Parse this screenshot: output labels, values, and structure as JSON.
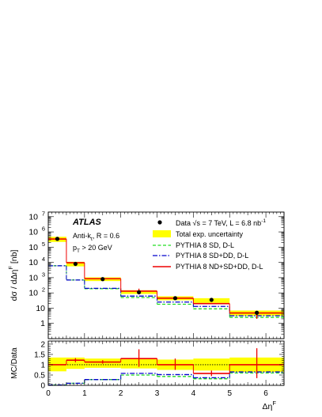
{
  "chart_data": [
    {
      "type": "step-histogram",
      "panel": "main",
      "atlas_label": "ATLAS",
      "annotations": [
        "Anti-k",
        "t",
        ", R = 0.6",
        "p",
        "T",
        " > 20 GeV"
      ],
      "ylabel": "dσ / dΔη",
      "ylabel_sup": "F",
      "ylabel_unit": " [nb]",
      "yscale": "log",
      "ylim": [
        0.1,
        20000000
      ],
      "y_ticks": [
        {
          "value": 1,
          "label": "1"
        },
        {
          "value": 10,
          "label": "10"
        },
        {
          "value": 100,
          "label": "10",
          "exp": "2"
        },
        {
          "value": 1000,
          "label": "10",
          "exp": "3"
        },
        {
          "value": 10000,
          "label": "10",
          "exp": "4"
        },
        {
          "value": 100000,
          "label": "10",
          "exp": "5"
        },
        {
          "value": 1000000,
          "label": "10",
          "exp": "6"
        },
        {
          "value": 10000000,
          "label": "10",
          "exp": "7"
        }
      ],
      "bin_edges": [
        0,
        0.5,
        1,
        2,
        3,
        4,
        5,
        6.5
      ],
      "data": {
        "name": "Data √s = 7 TeV, L = 6.8 nb",
        "name_sup": "-1",
        "x": [
          0.25,
          0.75,
          1.5,
          2.5,
          3.5,
          4.5,
          5.75
        ],
        "values": [
          350000,
          8000,
          800,
          110,
          45,
          35,
          5
        ]
      },
      "uncertainty_band": {
        "name": "Total exp. uncertainty",
        "lower": [
          220000,
          5500,
          600,
          85,
          33,
          22,
          3.2
        ],
        "upper": [
          480000,
          11000,
          1050,
          150,
          60,
          45,
          7
        ]
      },
      "series": [
        {
          "name": "PYTHIA 8 SD, D-L",
          "style": "dashed",
          "color": "#22dd22",
          "values": [
            6000,
            700,
            190,
            50,
            18,
            9,
            2.5
          ]
        },
        {
          "name": "PYTHIA 8 SD+DD, D-L",
          "style": "dashdot",
          "color": "#0000cc",
          "values": [
            6000,
            700,
            200,
            62,
            25,
            13,
            3.2
          ]
        },
        {
          "name": "PYTHIA 8 ND+SD+DD, D-L",
          "style": "solid",
          "color": "#ee0000",
          "values": [
            340000,
            9500,
            850,
            130,
            45,
            20,
            4.8
          ]
        }
      ],
      "mc_statistical_errors": [
        {
          "x": 2.5,
          "lower": 95,
          "upper": 190
        },
        {
          "x": 3.5,
          "lower": 35,
          "upper": 55
        },
        {
          "x": 5.75,
          "lower": 2,
          "upper": 6
        }
      ]
    },
    {
      "type": "step-histogram",
      "panel": "ratio",
      "ylabel": "MC/Data",
      "ylim": [
        0,
        2.15
      ],
      "y_ticks": [
        0,
        0.5,
        1,
        1.5,
        2
      ],
      "xlabel": "Δη",
      "xlabel_sup": "F",
      "xlim": [
        0,
        6.5
      ],
      "x_ticks": [
        0,
        1,
        2,
        3,
        4,
        5,
        6
      ],
      "bin_edges": [
        0,
        0.5,
        1,
        2,
        3,
        4,
        5,
        6.5
      ],
      "band": {
        "lower": [
          0.68,
          0.8,
          0.85,
          0.82,
          0.75,
          0.72,
          0.65
        ],
        "upper": [
          1.35,
          1.35,
          1.3,
          1.3,
          1.25,
          1.3,
          1.35
        ]
      },
      "reference_line": 1,
      "series": [
        {
          "name": "PYTHIA 8 SD, D-L",
          "style": "dashed",
          "color": "#22dd22",
          "values": [
            0.02,
            0.1,
            0.28,
            0.5,
            0.43,
            0.32,
            0.6
          ]
        },
        {
          "name": "PYTHIA 8 SD+DD, D-L",
          "style": "dashdot",
          "color": "#0000cc",
          "values": [
            0.02,
            0.1,
            0.28,
            0.58,
            0.52,
            0.37,
            0.65
          ]
        },
        {
          "name": "PYTHIA 8 ND+SD+DD, D-L",
          "style": "solid",
          "color": "#ee0000",
          "values": [
            1.0,
            1.22,
            1.13,
            1.3,
            1.0,
            0.58,
            1.0
          ]
        }
      ],
      "error_bars": [
        {
          "x": 0.75,
          "lower": 1.12,
          "upper": 1.32
        },
        {
          "x": 1.5,
          "lower": 1.05,
          "upper": 1.22
        },
        {
          "x": 2.5,
          "lower": 0.9,
          "upper": 1.75
        },
        {
          "x": 3.5,
          "lower": 0.75,
          "upper": 1.3
        },
        {
          "x": 4.5,
          "lower": 0.45,
          "upper": 0.72
        },
        {
          "x": 5.75,
          "lower": 0.35,
          "upper": 1.8
        }
      ]
    }
  ]
}
